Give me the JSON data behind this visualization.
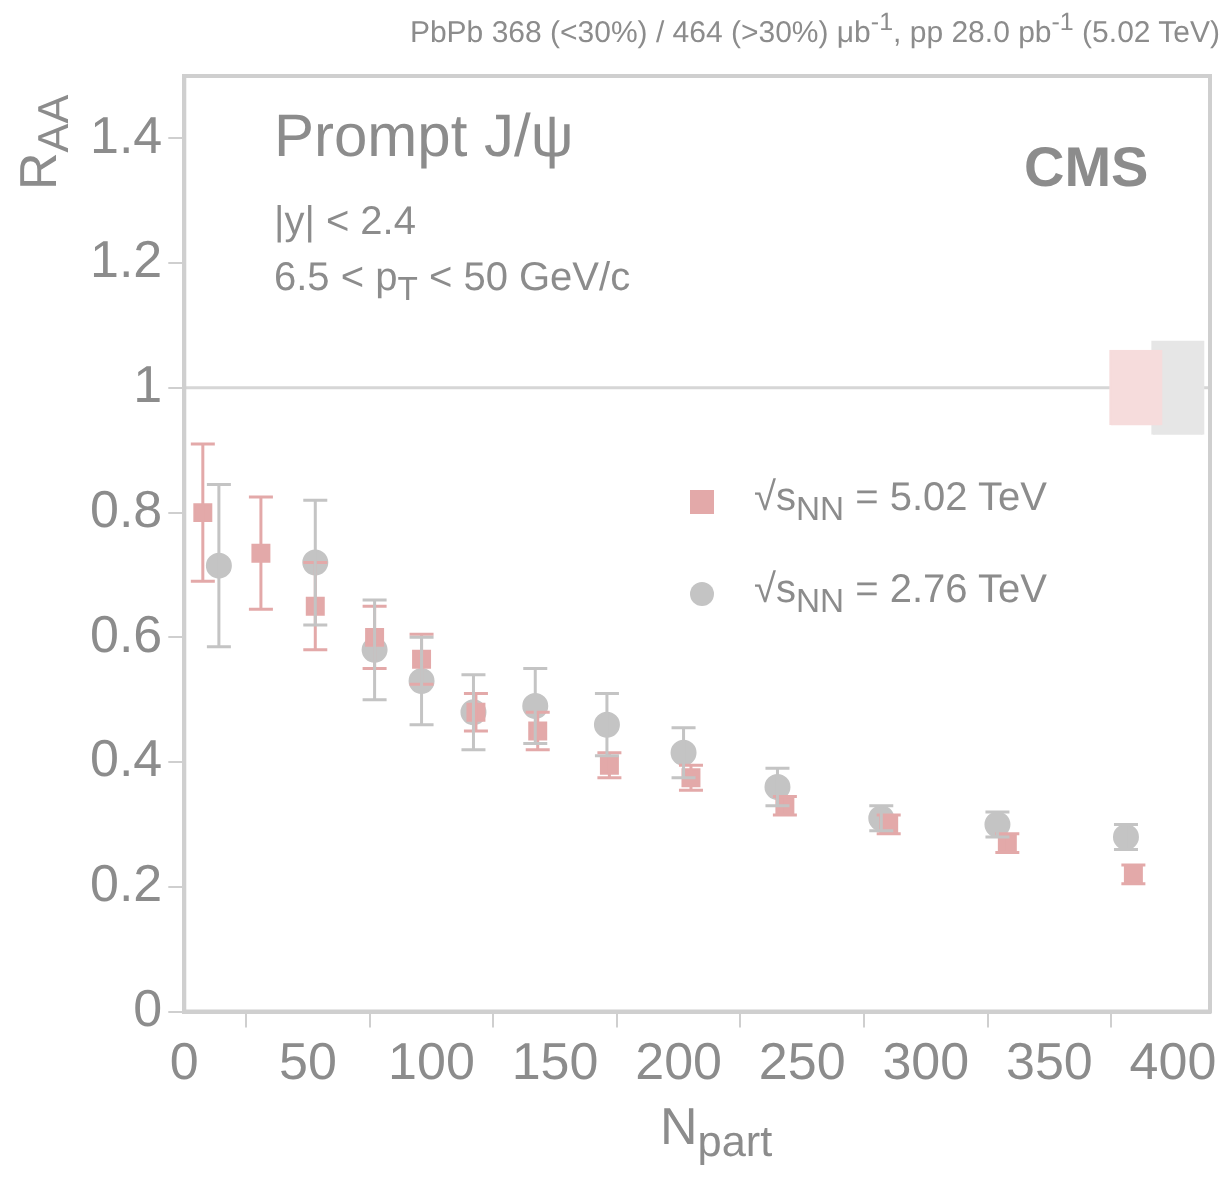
{
  "chart_data": {
    "type": "scatter",
    "title": "PbPb 368 (<30%) / 464 (>30%) μb$^{-1}$, pp 28.0 pb$^{-1}$ (5.02 TeV)",
    "xlabel": "N$_{part}$",
    "ylabel": "R$_{AA}$",
    "xlim": [
      0,
      415
    ],
    "xticks": [
      0,
      50,
      100,
      150,
      200,
      250,
      300,
      350,
      400
    ],
    "ylim": [
      0,
      1.5
    ],
    "yticks": [
      0,
      0.2,
      0.4,
      0.6,
      0.8,
      1,
      1.2,
      1.4
    ],
    "grid": false,
    "legend": "right",
    "series": [
      {
        "name": "√s$_{NN}$ = 5.02 TeV",
        "color": "#e3a9a9",
        "marker": "square",
        "x": [
          7.5,
          31,
          53,
          77,
          96,
          118,
          143,
          172,
          205,
          243,
          285,
          333,
          384
        ],
        "values": [
          0.8,
          0.735,
          0.65,
          0.6,
          0.565,
          0.48,
          0.45,
          0.395,
          0.375,
          0.33,
          0.3,
          0.27,
          0.22
        ],
        "errors": [
          0.11,
          0.09,
          0.07,
          0.05,
          0.04,
          0.03,
          0.03,
          0.02,
          0.02,
          0.015,
          0.015,
          0.015,
          0.015
        ]
      },
      {
        "name": "√s$_{NN}$ = 2.76 TeV",
        "color": "#c4c4c4",
        "marker": "circle",
        "x": [
          14,
          53,
          77,
          96,
          117,
          142,
          171,
          202,
          240,
          282,
          329,
          381
        ],
        "values": [
          0.715,
          0.72,
          0.58,
          0.53,
          0.48,
          0.49,
          0.46,
          0.415,
          0.36,
          0.31,
          0.3,
          0.28
        ],
        "errors": [
          0.13,
          0.1,
          0.08,
          0.07,
          0.06,
          0.06,
          0.05,
          0.04,
          0.03,
          0.02,
          0.02,
          0.02
        ]
      },
      {
        "type": "bar",
        "color": "#f6dcdc",
        "x": [
          385
        ],
        "base": [
          0.94
        ],
        "values": [
          0.12
        ]
      },
      {
        "type": "bar",
        "color": "#e6e6e6",
        "x": [
          402
        ],
        "base": [
          0.925
        ],
        "values": [
          0.15
        ]
      }
    ],
    "ref_lines": [
      {
        "axis": "y",
        "value": 1,
        "color": "#d6d6d6"
      }
    ],
    "annotations": [
      "Prompt J/ψ",
      "|y| < 2.4",
      "6.5 < p$_{T}$ < 50 GeV/c",
      "CMS"
    ]
  }
}
